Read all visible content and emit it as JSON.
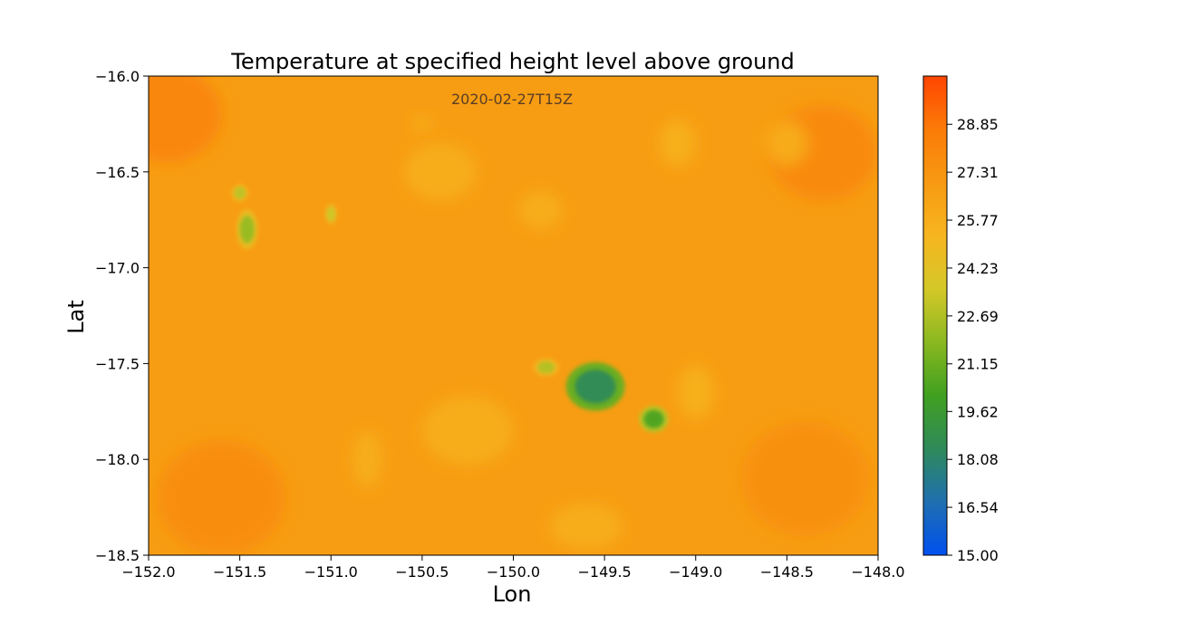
{
  "chart_data": {
    "type": "heatmap",
    "title": "Temperature at specified height level above ground",
    "annotation": "2020-02-27T15Z",
    "xlabel": "Lon",
    "ylabel": "Lat",
    "xlim": [
      -152.0,
      -148.0
    ],
    "ylim": [
      -18.5,
      -16.0
    ],
    "xticks": [
      -152.0,
      -151.5,
      -151.0,
      -150.5,
      -150.0,
      -149.5,
      -149.0,
      -148.5,
      -148.0
    ],
    "xtick_labels": [
      "−152.0",
      "−151.5",
      "−151.0",
      "−150.5",
      "−150.0",
      "−149.5",
      "−149.0",
      "−148.5",
      "−148.0"
    ],
    "yticks": [
      -16.0,
      -16.5,
      -17.0,
      -17.5,
      -18.0,
      -18.5
    ],
    "ytick_labels": [
      "−16.0",
      "−16.5",
      "−17.0",
      "−17.5",
      "−18.0",
      "−18.5"
    ],
    "grid": false,
    "colorbar": {
      "min": 15.0,
      "max": 30.4,
      "ticks": [
        15.0,
        16.54,
        18.08,
        19.62,
        21.15,
        22.69,
        24.23,
        25.77,
        27.31,
        28.85
      ],
      "tick_labels": [
        "15.00",
        "16.54",
        "18.08",
        "19.62",
        "21.15",
        "22.69",
        "24.23",
        "25.77",
        "27.31",
        "28.85"
      ],
      "colors": [
        "#0050f0",
        "#1f6fb0",
        "#2f8a5a",
        "#40a020",
        "#8ab820",
        "#d4c828",
        "#f7b520",
        "#f79a12",
        "#fb7b08",
        "#ff4500"
      ]
    },
    "background_value": 26.8,
    "features": [
      {
        "name": "island-large",
        "lon": -149.55,
        "lat": -17.62,
        "rlon": 0.14,
        "rlat": 0.11,
        "value": 18.6
      },
      {
        "name": "island-small-east",
        "lon": -149.23,
        "lat": -17.79,
        "rlon": 0.07,
        "rlat": 0.06,
        "value": 20.5
      },
      {
        "name": "island-west-1",
        "lon": -151.46,
        "lat": -16.8,
        "rlon": 0.05,
        "rlat": 0.09,
        "value": 22.2
      },
      {
        "name": "island-west-2",
        "lon": -151.5,
        "lat": -16.61,
        "rlon": 0.04,
        "rlat": 0.04,
        "value": 23.0
      },
      {
        "name": "island-west-3",
        "lon": -151.0,
        "lat": -16.72,
        "rlon": 0.03,
        "rlat": 0.05,
        "value": 23.4
      },
      {
        "name": "island-middle",
        "lon": -149.82,
        "lat": -17.52,
        "rlon": 0.06,
        "rlat": 0.04,
        "value": 22.8
      }
    ],
    "warm_patches": [
      {
        "lon": -151.9,
        "lat": -16.2,
        "rlon": 0.3,
        "rlat": 0.25,
        "value": 28.3
      },
      {
        "lon": -148.3,
        "lat": -16.4,
        "rlon": 0.3,
        "rlat": 0.25,
        "value": 28.0
      },
      {
        "lon": -151.6,
        "lat": -18.2,
        "rlon": 0.35,
        "rlat": 0.3,
        "value": 27.8
      },
      {
        "lon": -148.4,
        "lat": -18.1,
        "rlon": 0.35,
        "rlat": 0.3,
        "value": 27.6
      }
    ],
    "cool_patches": [
      {
        "lon": -150.4,
        "lat": -16.5,
        "rlon": 0.2,
        "rlat": 0.15,
        "value": 25.6
      },
      {
        "lon": -149.1,
        "lat": -16.35,
        "rlon": 0.1,
        "rlat": 0.12,
        "value": 25.4
      },
      {
        "lon": -148.5,
        "lat": -16.35,
        "rlon": 0.12,
        "rlat": 0.12,
        "value": 25.5
      },
      {
        "lon": -149.85,
        "lat": -16.7,
        "rlon": 0.12,
        "rlat": 0.1,
        "value": 25.6
      },
      {
        "lon": -149.0,
        "lat": -17.65,
        "rlon": 0.1,
        "rlat": 0.14,
        "value": 25.4
      },
      {
        "lon": -150.25,
        "lat": -17.85,
        "rlon": 0.25,
        "rlat": 0.18,
        "value": 25.6
      },
      {
        "lon": -150.8,
        "lat": -18.0,
        "rlon": 0.08,
        "rlat": 0.15,
        "value": 25.5
      },
      {
        "lon": -149.6,
        "lat": -18.35,
        "rlon": 0.2,
        "rlat": 0.12,
        "value": 25.6
      },
      {
        "lon": -150.5,
        "lat": -16.25,
        "rlon": 0.05,
        "rlat": 0.04,
        "value": 25.4
      }
    ]
  }
}
